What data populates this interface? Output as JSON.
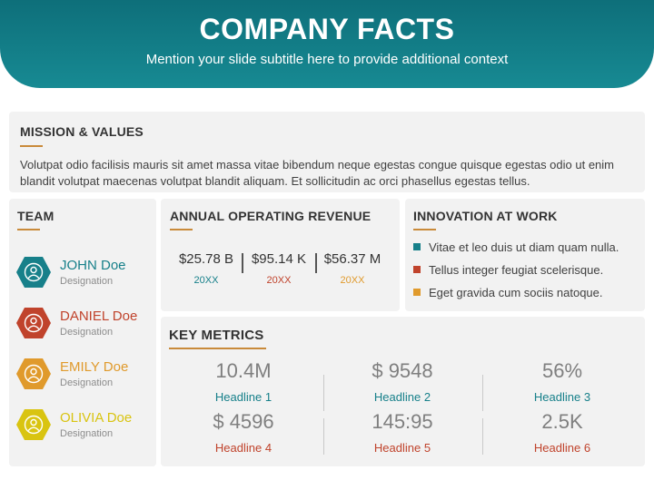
{
  "header": {
    "title": "COMPANY FACTS",
    "subtitle": "Mention your slide subtitle here to provide additional context"
  },
  "colors": {
    "teal": "#17808a",
    "red": "#c0432c",
    "orange": "#e09a2c",
    "yellow": "#d9c411",
    "accent_line": "#c98a3a"
  },
  "mission": {
    "title": "MISSION & VALUES",
    "body": "Volutpat odio facilisis mauris sit amet massa vitae bibendum neque egestas congue quisque egestas odio ut enim blandit volutpat maecenas volutpat blandit aliquam. Et sollicitudin ac orci phasellus egestas tellus."
  },
  "team": {
    "title": "TEAM",
    "members": [
      {
        "name": "JOHN Doe",
        "designation": "Designation",
        "icon": "user-icon",
        "color": "#17808a"
      },
      {
        "name": "DANIEL Doe",
        "designation": "Designation",
        "icon": "user-icon",
        "color": "#c0432c"
      },
      {
        "name": "EMILY Doe",
        "designation": "Designation",
        "icon": "user-icon",
        "color": "#e09a2c"
      },
      {
        "name": "OLIVIA Doe",
        "designation": "Designation",
        "icon": "user-icon",
        "color": "#d9c411"
      }
    ]
  },
  "revenue": {
    "title": "ANNUAL OPERATING REVENUE",
    "items": [
      {
        "value": "$25.78 B",
        "year": "20XX",
        "color": "#17808a"
      },
      {
        "value": "$95.14 K",
        "year": "20XX",
        "color": "#c0432c"
      },
      {
        "value": "$56.37 M",
        "year": "20XX",
        "color": "#e09a2c"
      }
    ]
  },
  "innovation": {
    "title": "INNOVATION AT WORK",
    "items": [
      {
        "text": "Vitae et leo duis ut diam quam nulla.",
        "color": "#17808a"
      },
      {
        "text": "Tellus integer feugiat scelerisque.",
        "color": "#c0432c"
      },
      {
        "text": "Eget gravida cum sociis natoque.",
        "color": "#e09a2c"
      }
    ]
  },
  "metrics": {
    "title": "KEY METRICS",
    "items": [
      {
        "value": "10.4M",
        "headline": "Headline 1",
        "color": "#17808a"
      },
      {
        "value": "$ 9548",
        "headline": "Headline 2",
        "color": "#17808a"
      },
      {
        "value": "56%",
        "headline": "Headline 3",
        "color": "#17808a"
      },
      {
        "value": "$ 4596",
        "headline": "Headline 4",
        "color": "#c0432c"
      },
      {
        "value": "145:95",
        "headline": "Headline 5",
        "color": "#c0432c"
      },
      {
        "value": "2.5K",
        "headline": "Headline 6",
        "color": "#c0432c"
      }
    ]
  }
}
